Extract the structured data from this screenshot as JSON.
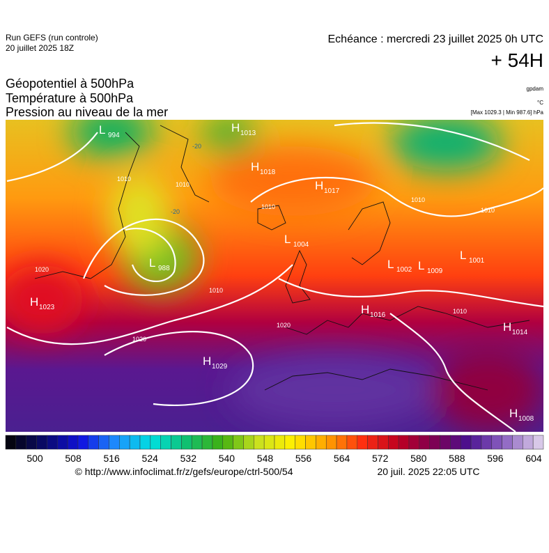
{
  "header": {
    "run": "Run GEFS (run controle)",
    "run_date": "20 juillet 2025 18Z",
    "valid": "Echéance : mercredi 23 juillet 2025 0h UTC",
    "lead": "+ 54H"
  },
  "titles": [
    "Géopotentiel à 500hPa",
    "Température à 500hPa",
    "Pression au niveau de la mer"
  ],
  "units": [
    "gpdam",
    "°C",
    "[Max 1029.3 | Min 987.6] hPa"
  ],
  "centers": [
    {
      "kind": "L",
      "value": "994"
    },
    {
      "kind": "H",
      "value": "1013"
    },
    {
      "kind": "H",
      "value": "1018"
    },
    {
      "kind": "H",
      "value": "1017"
    },
    {
      "kind": "L",
      "value": "1004"
    },
    {
      "kind": "L",
      "value": "988"
    },
    {
      "kind": "L",
      "value": "1002"
    },
    {
      "kind": "L",
      "value": "1009"
    },
    {
      "kind": "L",
      "value": "1001"
    },
    {
      "kind": "H",
      "value": "1023"
    },
    {
      "kind": "H",
      "value": "1016"
    },
    {
      "kind": "H",
      "value": "1014"
    },
    {
      "kind": "H",
      "value": "1029"
    },
    {
      "kind": "H",
      "value": "1008"
    }
  ],
  "isobar_labels": [
    "1010",
    "1010",
    "1020",
    "1010",
    "1020",
    "1020",
    "1010",
    "1010",
    "1010",
    "1010",
    "-20",
    "-20"
  ],
  "colorbar": {
    "labels": [
      500,
      508,
      516,
      524,
      532,
      540,
      548,
      556,
      564,
      572,
      580,
      588,
      596,
      604
    ],
    "stops": [
      "#050510",
      "#0a0a6e",
      "#1010e0",
      "#1e90ff",
      "#00e0e0",
      "#10c070",
      "#40b010",
      "#c8e020",
      "#fff000",
      "#ffa000",
      "#ff3010",
      "#c00020",
      "#800050",
      "#4a1090",
      "#8a60c0",
      "#d8c8e8"
    ],
    "count": 52
  },
  "footer": {
    "source": "© http://www.infoclimat.fr/z/gefs/europe/ctrl-500/54",
    "generated": "20 juil. 2025 22:05 UTC"
  }
}
